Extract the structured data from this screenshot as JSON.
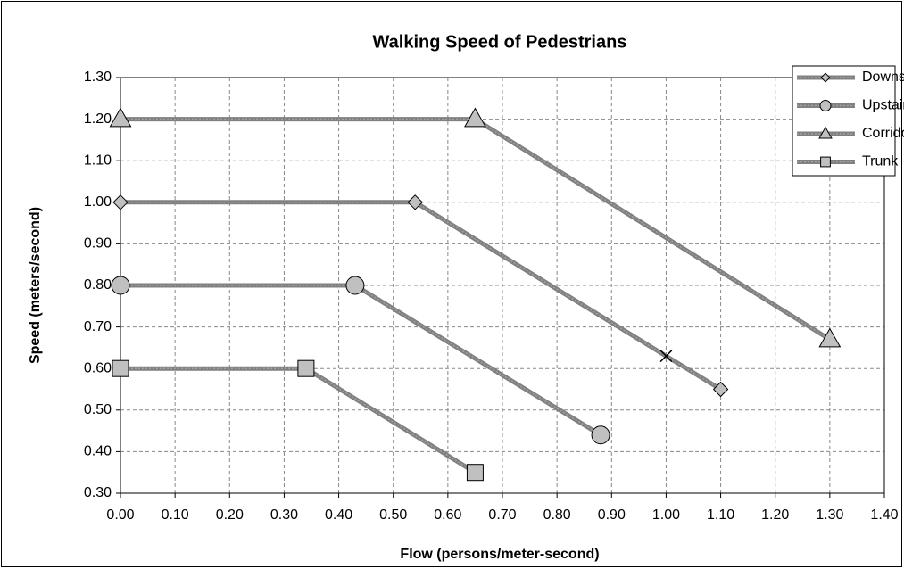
{
  "chart_data": {
    "type": "line",
    "title": "Walking Speed of Pedestrians",
    "x_label": "Flow (persons/meter-second)",
    "y_label": "Speed  (meters/second)",
    "xlim": [
      0,
      1.4
    ],
    "ylim": [
      0.3,
      1.3
    ],
    "xticks": [
      {
        "value": 0,
        "label": "0.00"
      },
      {
        "value": 0.1,
        "label": "0.10"
      },
      {
        "value": 0.2,
        "label": "0.20"
      },
      {
        "value": 0.3,
        "label": "0.30"
      },
      {
        "value": 0.4,
        "label": "0.40"
      },
      {
        "value": 0.5,
        "label": "0.50"
      },
      {
        "value": 0.6,
        "label": "0.60"
      },
      {
        "value": 0.7,
        "label": "0.70"
      },
      {
        "value": 0.8,
        "label": "0.80"
      },
      {
        "value": 0.9,
        "label": "0.90"
      },
      {
        "value": 1,
        "label": "1.00"
      },
      {
        "value": 1.1,
        "label": "1.10"
      },
      {
        "value": 1.2,
        "label": "1.20"
      },
      {
        "value": 1.3,
        "label": "1.30"
      },
      {
        "value": 1.4,
        "label": "1.40"
      }
    ],
    "yticks": [
      {
        "value": 0.3,
        "label": "0.30"
      },
      {
        "value": 0.4,
        "label": "0.40"
      },
      {
        "value": 0.5,
        "label": "0.50"
      },
      {
        "value": 0.6,
        "label": "0.60"
      },
      {
        "value": 0.7,
        "label": "0.70"
      },
      {
        "value": 0.8,
        "label": "0.80"
      },
      {
        "value": 0.9,
        "label": "0.90"
      },
      {
        "value": 1,
        "label": "1.00"
      },
      {
        "value": 1.1,
        "label": "1.10"
      },
      {
        "value": 1.2,
        "label": "1.20"
      },
      {
        "value": 1.3,
        "label": "1.30"
      }
    ],
    "grid": true,
    "legend": "top-right",
    "series": [
      {
        "name": "Downstairs",
        "color": "#808080",
        "marker": "diamond",
        "markers": [
          "diamond",
          "diamond",
          "x",
          "diamond"
        ],
        "x": [
          0,
          0.54,
          1.0,
          1.1
        ],
        "values": [
          1.0,
          1.0,
          0.63,
          0.55
        ]
      },
      {
        "name": "Upstairs",
        "color": "#808080",
        "marker": "circle",
        "x": [
          0,
          0.43,
          0.88
        ],
        "values": [
          0.8,
          0.8,
          0.44
        ]
      },
      {
        "name": "Corridors",
        "color": "#808080",
        "marker": "triangle",
        "x": [
          0,
          0.65,
          1.3
        ],
        "values": [
          1.2,
          1.2,
          0.67
        ]
      },
      {
        "name": "Trunk",
        "color": "#808080",
        "marker": "square",
        "x": [
          0,
          0.34,
          0.65
        ],
        "values": [
          0.6,
          0.6,
          0.35
        ]
      }
    ]
  }
}
